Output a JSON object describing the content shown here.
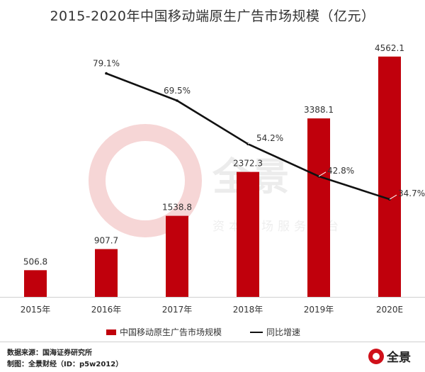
{
  "chart_data": {
    "type": "bar",
    "title": "2015-2020年中国移动端原生广告市场规模（亿元）",
    "categories": [
      "2015年",
      "2016年",
      "2017年",
      "2018年",
      "2019年",
      "2020E"
    ],
    "ylim": [
      0,
      4600
    ],
    "series": [
      {
        "name": "中国移动原生广告市场规模",
        "type": "bar",
        "color": "#c0000c",
        "values": [
          506.8,
          907.7,
          1538.8,
          2372.3,
          3388.1,
          4562.1
        ],
        "labels": [
          "506.8",
          "907.7",
          "1538.8",
          "2372.3",
          "3388.1",
          "4562.1"
        ]
      },
      {
        "name": "同比增速",
        "type": "line",
        "color": "#111111",
        "values": [
          null,
          79.1,
          69.5,
          54.2,
          42.8,
          34.7
        ],
        "labels": [
          "",
          "79.1%",
          "69.5%",
          "54.2%",
          "42.8%",
          "34.7%"
        ]
      }
    ],
    "legend_position": "bottom"
  },
  "watermark": {
    "name": "全景",
    "subtitle": "资本市场服务平台"
  },
  "footer": {
    "source": "数据来源：国海证券研究所",
    "author": "制图：全景财经（ID：p5w2012）",
    "logo_name": "全景",
    "logo_subtitle": "资本市场服务平台"
  }
}
